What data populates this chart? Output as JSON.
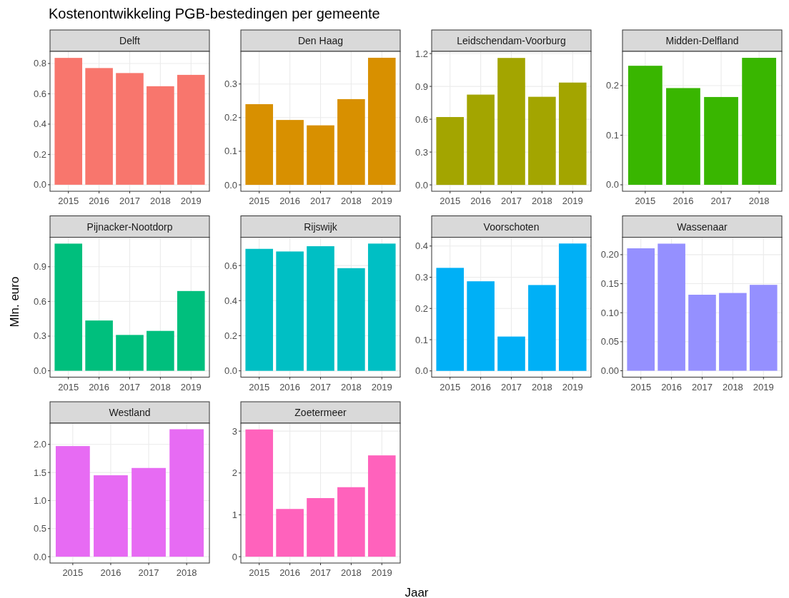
{
  "chart_data": [
    {
      "type": "other",
      "title": "Kostenontwikkeling PGB-bestedingen per gemeente"
    },
    {
      "type": "bar",
      "title": "Delft",
      "categories": [
        "2015",
        "2016",
        "2017",
        "2018",
        "2019"
      ],
      "values": [
        0.837,
        0.77,
        0.737,
        0.65,
        0.725
      ],
      "color": "#f8766d",
      "ylim": [
        -0.043,
        0.88
      ],
      "yticks": [
        {
          "value": 0,
          "label": "0.0"
        },
        {
          "value": 0.2,
          "label": "0.2"
        },
        {
          "value": 0.4,
          "label": "0.4"
        },
        {
          "value": 0.6,
          "label": "0.6"
        },
        {
          "value": 0.8,
          "label": "0.8"
        }
      ],
      "grid": true
    },
    {
      "type": "bar",
      "title": "Den Haag",
      "categories": [
        "2015",
        "2016",
        "2017",
        "2018",
        "2019"
      ],
      "values": [
        0.24,
        0.193,
        0.177,
        0.255,
        0.378
      ],
      "color": "#d89000",
      "ylim": [
        -0.019,
        0.397
      ],
      "yticks": [
        {
          "value": 0,
          "label": "0.0"
        },
        {
          "value": 0.1,
          "label": "0.1"
        },
        {
          "value": 0.2,
          "label": "0.2"
        },
        {
          "value": 0.3,
          "label": "0.3"
        }
      ],
      "grid": true
    },
    {
      "type": "bar",
      "title": "Leidschendam-Voorburg",
      "categories": [
        "2015",
        "2016",
        "2017",
        "2018",
        "2019"
      ],
      "values": [
        0.62,
        0.825,
        1.16,
        0.805,
        0.935
      ],
      "color": "#a3a500",
      "ylim": [
        -0.058,
        1.22
      ],
      "yticks": [
        {
          "value": 0,
          "label": "0.0"
        },
        {
          "value": 0.3,
          "label": "0.3"
        },
        {
          "value": 0.6,
          "label": "0.6"
        },
        {
          "value": 0.9,
          "label": "0.9"
        },
        {
          "value": 1.2,
          "label": "1.2"
        }
      ],
      "grid": true
    },
    {
      "type": "bar",
      "title": "Midden-Delfland",
      "categories": [
        "2015",
        "2016",
        "2017",
        "2018"
      ],
      "values": [
        0.24,
        0.195,
        0.177,
        0.256
      ],
      "color": "#39b600",
      "ylim": [
        -0.013,
        0.269
      ],
      "yticks": [
        {
          "value": 0,
          "label": "0.0"
        },
        {
          "value": 0.1,
          "label": "0.1"
        },
        {
          "value": 0.2,
          "label": "0.2"
        }
      ],
      "grid": true
    },
    {
      "type": "bar",
      "title": "Pijnacker-Nootdorp",
      "ylabel": "Mln. euro",
      "categories": [
        "2015",
        "2016",
        "2017",
        "2018",
        "2019"
      ],
      "values": [
        1.1,
        0.435,
        0.31,
        0.345,
        0.69
      ],
      "color": "#00bf7d",
      "ylim": [
        -0.055,
        1.155
      ],
      "yticks": [
        {
          "value": 0,
          "label": "0.0"
        },
        {
          "value": 0.3,
          "label": "0.3"
        },
        {
          "value": 0.6,
          "label": "0.6"
        },
        {
          "value": 0.9,
          "label": "0.9"
        }
      ],
      "grid": true
    },
    {
      "type": "bar",
      "title": "Rijswijk",
      "categories": [
        "2015",
        "2016",
        "2017",
        "2018",
        "2019"
      ],
      "values": [
        0.695,
        0.68,
        0.71,
        0.585,
        0.725
      ],
      "color": "#00bfc4",
      "ylim": [
        -0.036,
        0.761
      ],
      "yticks": [
        {
          "value": 0,
          "label": "0.0"
        },
        {
          "value": 0.2,
          "label": "0.2"
        },
        {
          "value": 0.4,
          "label": "0.4"
        },
        {
          "value": 0.6,
          "label": "0.6"
        }
      ],
      "grid": true
    },
    {
      "type": "bar",
      "title": "Voorschoten",
      "categories": [
        "2015",
        "2016",
        "2017",
        "2018",
        "2019"
      ],
      "values": [
        0.33,
        0.287,
        0.11,
        0.275,
        0.408
      ],
      "color": "#00b0f6",
      "ylim": [
        -0.02,
        0.428
      ],
      "yticks": [
        {
          "value": 0,
          "label": "0.0"
        },
        {
          "value": 0.1,
          "label": "0.1"
        },
        {
          "value": 0.2,
          "label": "0.2"
        },
        {
          "value": 0.3,
          "label": "0.3"
        },
        {
          "value": 0.4,
          "label": "0.4"
        }
      ],
      "grid": true
    },
    {
      "type": "bar",
      "title": "Wassenaar",
      "categories": [
        "2015",
        "2016",
        "2017",
        "2018",
        "2019"
      ],
      "values": [
        0.211,
        0.219,
        0.131,
        0.134,
        0.148
      ],
      "color": "#9590ff",
      "ylim": [
        -0.011,
        0.23
      ],
      "yticks": [
        {
          "value": 0,
          "label": "0.00"
        },
        {
          "value": 0.05,
          "label": "0.05"
        },
        {
          "value": 0.1,
          "label": "0.10"
        },
        {
          "value": 0.15,
          "label": "0.15"
        },
        {
          "value": 0.2,
          "label": "0.20"
        }
      ],
      "grid": true
    },
    {
      "type": "bar",
      "title": "Westland",
      "categories": [
        "2015",
        "2016",
        "2017",
        "2018"
      ],
      "values": [
        1.97,
        1.45,
        1.58,
        2.27
      ],
      "color": "#e76bf3",
      "ylim": [
        -0.113,
        2.378
      ],
      "yticks": [
        {
          "value": 0,
          "label": "0.0"
        },
        {
          "value": 0.5,
          "label": "0.5"
        },
        {
          "value": 1,
          "label": "1.0"
        },
        {
          "value": 1.5,
          "label": "1.5"
        },
        {
          "value": 2,
          "label": "2.0"
        }
      ],
      "grid": true
    },
    {
      "type": "bar",
      "title": "Zoetermeer",
      "xlabel": "Jaar",
      "categories": [
        "2015",
        "2016",
        "2017",
        "2018",
        "2019"
      ],
      "values": [
        3.04,
        1.14,
        1.4,
        1.66,
        2.42
      ],
      "color": "#ff62bc",
      "ylim": [
        -0.152,
        3.19
      ],
      "yticks": [
        0,
        1,
        2,
        3
      ],
      "grid": true
    }
  ]
}
